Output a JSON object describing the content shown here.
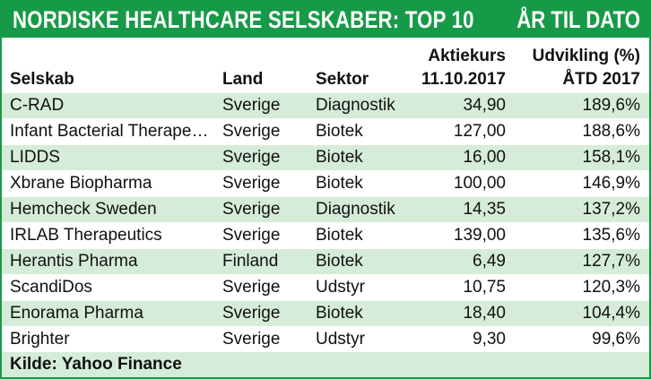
{
  "header": {
    "title": "NORDISKE HEALTHCARE SELSKABER: TOP 10",
    "period": "ÅR TIL DATO"
  },
  "columns": {
    "company": "Selskab",
    "country": "Land",
    "sector": "Sektor",
    "price_line1": "Aktiekurs",
    "price_line2": "11.10.2017",
    "change_line1": "Udvikling (%)",
    "change_line2": "ÅTD 2017"
  },
  "rows": [
    {
      "company": "C-RAD",
      "country": "Sverige",
      "sector": "Diagnostik",
      "price": "34,90",
      "change": "189,6%"
    },
    {
      "company": "Infant Bacterial Therapeu...",
      "country": "Sverige",
      "sector": "Biotek",
      "price": "127,00",
      "change": "188,6%"
    },
    {
      "company": "LIDDS",
      "country": "Sverige",
      "sector": "Biotek",
      "price": "16,00",
      "change": "158,1%"
    },
    {
      "company": "Xbrane Biopharma",
      "country": "Sverige",
      "sector": "Biotek",
      "price": "100,00",
      "change": "146,9%"
    },
    {
      "company": "Hemcheck Sweden",
      "country": "Sverige",
      "sector": "Diagnostik",
      "price": "14,35",
      "change": "137,2%"
    },
    {
      "company": "IRLAB Therapeutics",
      "country": "Sverige",
      "sector": "Biotek",
      "price": "139,00",
      "change": "135,6%"
    },
    {
      "company": "Herantis Pharma",
      "country": "Finland",
      "sector": "Biotek",
      "price": "6,49",
      "change": "127,7%"
    },
    {
      "company": "ScandiDos",
      "country": "Sverige",
      "sector": "Udstyr",
      "price": "10,75",
      "change": "120,3%"
    },
    {
      "company": "Enorama Pharma",
      "country": "Sverige",
      "sector": "Biotek",
      "price": "18,40",
      "change": "104,4%"
    },
    {
      "company": "Brighter",
      "country": "Sverige",
      "sector": "Udstyr",
      "price": "9,30",
      "change": "99,6%"
    }
  ],
  "footer": {
    "source": "Kilde: Yahoo Finance"
  },
  "colors": {
    "brand_green": "#179a47",
    "row_tint": "#d5ecd9"
  }
}
